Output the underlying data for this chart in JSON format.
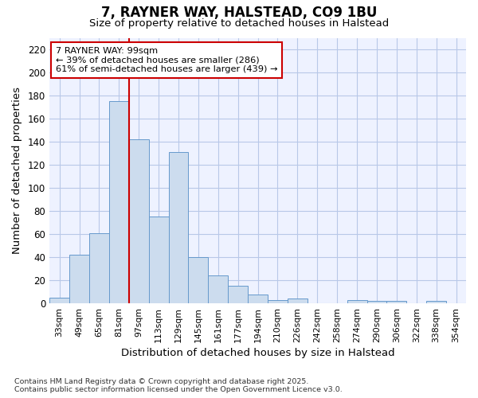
{
  "title": "7, RAYNER WAY, HALSTEAD, CO9 1BU",
  "subtitle": "Size of property relative to detached houses in Halstead",
  "xlabel": "Distribution of detached houses by size in Halstead",
  "ylabel": "Number of detached properties",
  "bar_color": "#ccdcee",
  "bar_edge_color": "#6699cc",
  "categories": [
    "33sqm",
    "49sqm",
    "65sqm",
    "81sqm",
    "97sqm",
    "113sqm",
    "129sqm",
    "145sqm",
    "161sqm",
    "177sqm",
    "194sqm",
    "210sqm",
    "226sqm",
    "242sqm",
    "258sqm",
    "274sqm",
    "290sqm",
    "306sqm",
    "322sqm",
    "338sqm",
    "354sqm"
  ],
  "values": [
    5,
    42,
    61,
    175,
    142,
    75,
    131,
    40,
    24,
    15,
    8,
    3,
    4,
    0,
    0,
    3,
    2,
    2,
    0,
    2,
    0
  ],
  "ylim": [
    0,
    230
  ],
  "yticks": [
    0,
    20,
    40,
    60,
    80,
    100,
    120,
    140,
    160,
    180,
    200,
    220
  ],
  "vline_color": "#cc0000",
  "vline_x_index": 4.5,
  "annotation_text": "7 RAYNER WAY: 99sqm\n← 39% of detached houses are smaller (286)\n61% of semi-detached houses are larger (439) →",
  "background_color": "#ffffff",
  "plot_bg_color": "#eef2ff",
  "grid_color": "#b8c8e8",
  "footer_text": "Contains HM Land Registry data © Crown copyright and database right 2025.\nContains public sector information licensed under the Open Government Licence v3.0.",
  "annotation_box_facecolor": "white",
  "annotation_box_edgecolor": "#cc0000"
}
